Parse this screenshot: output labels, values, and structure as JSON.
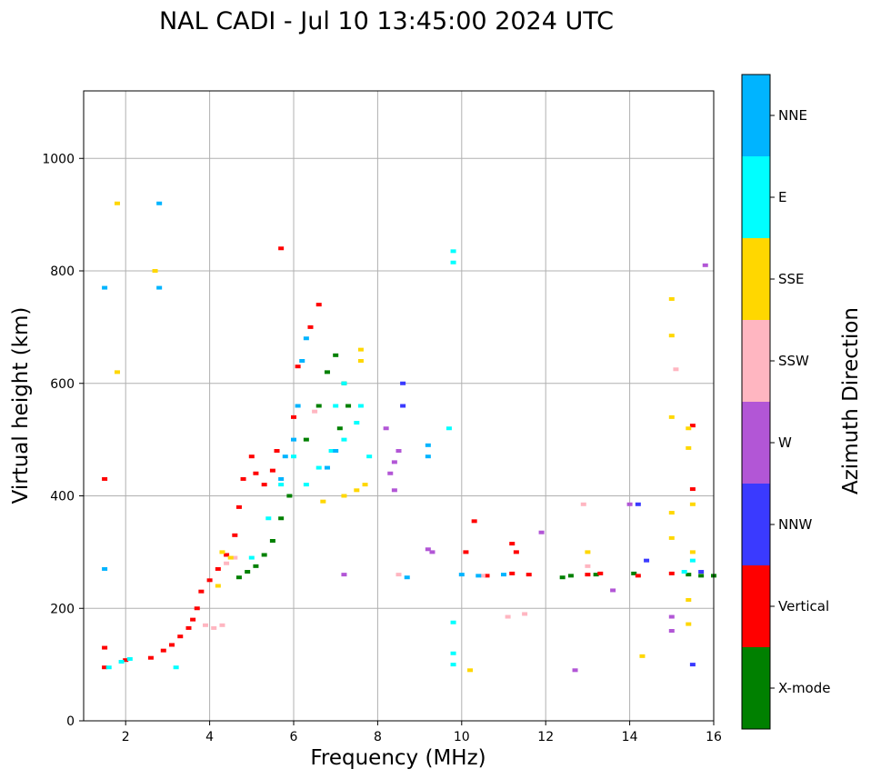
{
  "chart_data": {
    "type": "scatter",
    "title": "NAL CADI - Jul 10 13:45:00 2024 UTC",
    "xlabel": "Frequency (MHz)",
    "ylabel": "Virtual height (km)",
    "xlim": [
      1,
      16
    ],
    "ylim": [
      0,
      1120
    ],
    "xticks": [
      2,
      4,
      6,
      8,
      10,
      12,
      14,
      16
    ],
    "yticks": [
      0,
      200,
      400,
      600,
      800,
      1000
    ],
    "grid": true,
    "colorbar": {
      "label": "Azimuth Direction",
      "categories": [
        {
          "name": "X-mode",
          "color": "#008000"
        },
        {
          "name": "Vertical",
          "color": "#ff0000"
        },
        {
          "name": "NNW",
          "color": "#3a3aff"
        },
        {
          "name": "W",
          "color": "#b256d6"
        },
        {
          "name": "SSW",
          "color": "#ffb6c1"
        },
        {
          "name": "SSE",
          "color": "#ffd700"
        },
        {
          "name": "E",
          "color": "#00ffff"
        },
        {
          "name": "NNE",
          "color": "#00b4ff"
        }
      ]
    },
    "series": [
      {
        "name": "X-mode",
        "points": [
          [
            4.7,
            255
          ],
          [
            4.9,
            265
          ],
          [
            5.1,
            275
          ],
          [
            5.3,
            295
          ],
          [
            5.5,
            320
          ],
          [
            5.7,
            360
          ],
          [
            5.9,
            400
          ],
          [
            6.3,
            500
          ],
          [
            6.6,
            560
          ],
          [
            6.8,
            620
          ],
          [
            7.0,
            650
          ],
          [
            7.2,
            600
          ],
          [
            7.3,
            560
          ],
          [
            7.1,
            520
          ],
          [
            12.4,
            255
          ],
          [
            12.6,
            258
          ],
          [
            13.2,
            260
          ],
          [
            14.1,
            262
          ],
          [
            15.4,
            260
          ],
          [
            15.7,
            258
          ],
          [
            16.0,
            258
          ]
        ]
      },
      {
        "name": "Vertical",
        "points": [
          [
            1.5,
            95
          ],
          [
            1.5,
            130
          ],
          [
            2.0,
            108
          ],
          [
            2.6,
            112
          ],
          [
            2.9,
            125
          ],
          [
            3.1,
            135
          ],
          [
            3.3,
            150
          ],
          [
            3.5,
            165
          ],
          [
            3.6,
            180
          ],
          [
            3.7,
            200
          ],
          [
            3.8,
            230
          ],
          [
            4.0,
            250
          ],
          [
            4.2,
            270
          ],
          [
            4.4,
            295
          ],
          [
            4.6,
            330
          ],
          [
            4.7,
            380
          ],
          [
            4.8,
            430
          ],
          [
            5.0,
            470
          ],
          [
            5.1,
            440
          ],
          [
            5.3,
            420
          ],
          [
            5.5,
            445
          ],
          [
            5.6,
            480
          ],
          [
            6.0,
            540
          ],
          [
            6.1,
            630
          ],
          [
            6.4,
            700
          ],
          [
            6.6,
            740
          ],
          [
            5.7,
            840
          ],
          [
            1.5,
            430
          ],
          [
            10.1,
            300
          ],
          [
            10.3,
            355
          ],
          [
            11.2,
            315
          ],
          [
            11.3,
            300
          ],
          [
            10.6,
            258
          ],
          [
            11.2,
            262
          ],
          [
            11.6,
            260
          ],
          [
            13.0,
            260
          ],
          [
            13.3,
            262
          ],
          [
            14.2,
            258
          ],
          [
            15.0,
            262
          ],
          [
            15.5,
            412
          ],
          [
            15.5,
            525
          ]
        ]
      },
      {
        "name": "NNW",
        "points": [
          [
            8.6,
            600
          ],
          [
            8.6,
            560
          ],
          [
            14.2,
            385
          ],
          [
            14.4,
            285
          ],
          [
            15.5,
            100
          ],
          [
            15.7,
            265
          ]
        ]
      },
      {
        "name": "W",
        "points": [
          [
            7.2,
            260
          ],
          [
            8.4,
            460
          ],
          [
            8.3,
            440
          ],
          [
            8.5,
            480
          ],
          [
            8.4,
            410
          ],
          [
            8.2,
            520
          ],
          [
            9.2,
            305
          ],
          [
            9.3,
            300
          ],
          [
            11.9,
            335
          ],
          [
            12.7,
            90
          ],
          [
            13.6,
            232
          ],
          [
            14.0,
            385
          ],
          [
            15.0,
            185
          ],
          [
            15.0,
            160
          ],
          [
            15.8,
            810
          ]
        ]
      },
      {
        "name": "SSW",
        "points": [
          [
            3.9,
            170
          ],
          [
            4.1,
            165
          ],
          [
            4.3,
            170
          ],
          [
            4.4,
            280
          ],
          [
            4.6,
            290
          ],
          [
            6.5,
            550
          ],
          [
            8.5,
            260
          ],
          [
            10.5,
            258
          ],
          [
            11.1,
            185
          ],
          [
            11.5,
            190
          ],
          [
            12.9,
            385
          ],
          [
            13.0,
            275
          ],
          [
            15.1,
            625
          ]
        ]
      },
      {
        "name": "SSE",
        "points": [
          [
            1.8,
            920
          ],
          [
            2.7,
            800
          ],
          [
            1.8,
            620
          ],
          [
            4.2,
            240
          ],
          [
            4.3,
            300
          ],
          [
            4.5,
            290
          ],
          [
            6.7,
            390
          ],
          [
            7.2,
            400
          ],
          [
            7.5,
            410
          ],
          [
            7.7,
            420
          ],
          [
            7.6,
            640
          ],
          [
            7.6,
            660
          ],
          [
            13.0,
            300
          ],
          [
            14.3,
            115
          ],
          [
            15.0,
            750
          ],
          [
            15.0,
            685
          ],
          [
            15.0,
            540
          ],
          [
            15.0,
            370
          ],
          [
            15.0,
            325
          ],
          [
            15.4,
            520
          ],
          [
            15.4,
            485
          ],
          [
            15.5,
            385
          ],
          [
            15.5,
            300
          ],
          [
            15.4,
            215
          ],
          [
            15.4,
            172
          ],
          [
            10.2,
            90
          ]
        ]
      },
      {
        "name": "E",
        "points": [
          [
            1.6,
            95
          ],
          [
            1.9,
            105
          ],
          [
            2.1,
            110
          ],
          [
            3.2,
            95
          ],
          [
            5.0,
            290
          ],
          [
            5.4,
            360
          ],
          [
            5.7,
            420
          ],
          [
            6.0,
            470
          ],
          [
            6.3,
            420
          ],
          [
            6.6,
            450
          ],
          [
            6.9,
            480
          ],
          [
            7.2,
            500
          ],
          [
            7.5,
            530
          ],
          [
            7.8,
            470
          ],
          [
            7.0,
            560
          ],
          [
            7.2,
            600
          ],
          [
            7.6,
            560
          ],
          [
            9.8,
            835
          ],
          [
            9.8,
            815
          ],
          [
            9.7,
            520
          ],
          [
            9.8,
            175
          ],
          [
            9.8,
            120
          ],
          [
            9.8,
            100
          ],
          [
            15.5,
            285
          ],
          [
            15.3,
            265
          ]
        ]
      },
      {
        "name": "NNE",
        "points": [
          [
            1.5,
            770
          ],
          [
            1.5,
            270
          ],
          [
            2.8,
            920
          ],
          [
            2.8,
            770
          ],
          [
            5.7,
            430
          ],
          [
            5.8,
            470
          ],
          [
            6.0,
            500
          ],
          [
            6.1,
            560
          ],
          [
            6.2,
            640
          ],
          [
            6.3,
            680
          ],
          [
            6.8,
            450
          ],
          [
            7.0,
            480
          ],
          [
            9.2,
            490
          ],
          [
            9.2,
            470
          ],
          [
            8.7,
            255
          ],
          [
            10.0,
            260
          ],
          [
            10.4,
            258
          ],
          [
            11.0,
            260
          ]
        ]
      }
    ]
  }
}
